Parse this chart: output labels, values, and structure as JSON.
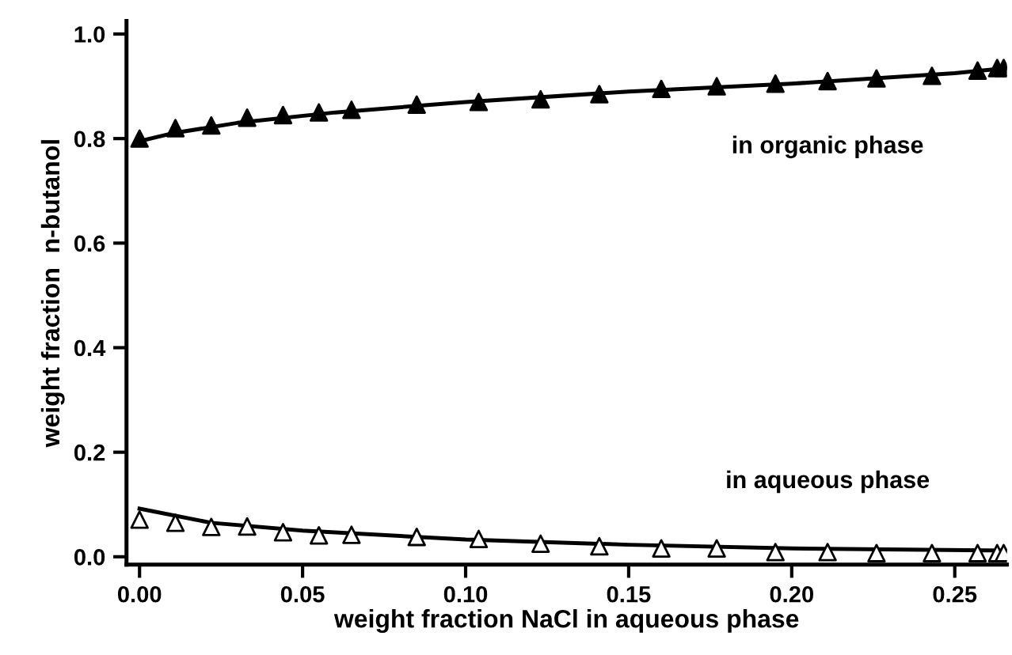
{
  "chart_data": {
    "type": "scatter",
    "xlabel": "weight fraction NaCl in aqueous phase",
    "ylabel": "weight fraction  n-butanol",
    "xlim": [
      -0.004,
      0.266
    ],
    "ylim": [
      -0.015,
      1.025
    ],
    "xticks": [
      {
        "value": 0,
        "label": "0.00"
      },
      {
        "value": 0.05,
        "label": "0.05"
      },
      {
        "value": 0.1,
        "label": "0.10"
      },
      {
        "value": 0.15,
        "label": "0.15"
      },
      {
        "value": 0.2,
        "label": "0.20"
      },
      {
        "value": 0.25,
        "label": "0.25"
      }
    ],
    "yticks": [
      {
        "value": 0,
        "label": "0.0"
      },
      {
        "value": 0.2,
        "label": "0.2"
      },
      {
        "value": 0.4,
        "label": "0.4"
      },
      {
        "value": 0.6,
        "label": "0.6"
      },
      {
        "value": 0.8,
        "label": "0.8"
      },
      {
        "value": 1.0,
        "label": "1.0"
      }
    ],
    "grid": false,
    "legend": false,
    "marker": "triangle",
    "series": [
      {
        "type": "line",
        "color": "#000000",
        "line_style": "solid",
        "marker": "none",
        "x": [
          0,
          0.01,
          0.03,
          0.06,
          0.1,
          0.15,
          0.2,
          0.25,
          0.266
        ],
        "values": [
          0.795,
          0.81,
          0.83,
          0.85,
          0.87,
          0.89,
          0.905,
          0.925,
          0.935
        ]
      },
      {
        "type": "line",
        "color": "#000000",
        "line_style": "solid",
        "marker": "none",
        "x": [
          0,
          0.022,
          0.05,
          0.1,
          0.15,
          0.2,
          0.266
        ],
        "values": [
          0.092,
          0.065,
          0.05,
          0.033,
          0.023,
          0.016,
          0.012
        ]
      },
      {
        "name": "in organic phase",
        "color": "#000000",
        "x": [
          0,
          0.011,
          0.022,
          0.033,
          0.044,
          0.055,
          0.065,
          0.085,
          0.104,
          0.123,
          0.141,
          0.16,
          0.177,
          0.195,
          0.211,
          0.226,
          0.243,
          0.257,
          0.263,
          0.265
        ],
        "values": [
          0.8,
          0.82,
          0.825,
          0.84,
          0.845,
          0.85,
          0.855,
          0.865,
          0.87,
          0.875,
          0.885,
          0.895,
          0.9,
          0.905,
          0.91,
          0.915,
          0.92,
          0.93,
          0.935,
          0.935
        ]
      },
      {
        "name": "in aqueous phase",
        "color": "#ffffff",
        "x": [
          0,
          0.011,
          0.022,
          0.033,
          0.044,
          0.055,
          0.065,
          0.085,
          0.104,
          0.123,
          0.141,
          0.16,
          0.177,
          0.195,
          0.211,
          0.226,
          0.243,
          0.257,
          0.263,
          0.265
        ],
        "values": [
          0.071,
          0.065,
          0.057,
          0.058,
          0.047,
          0.041,
          0.042,
          0.038,
          0.034,
          0.025,
          0.02,
          0.016,
          0.016,
          0.009,
          0.009,
          0.007,
          0.007,
          0.007,
          0.007,
          0.007
        ]
      }
    ]
  }
}
